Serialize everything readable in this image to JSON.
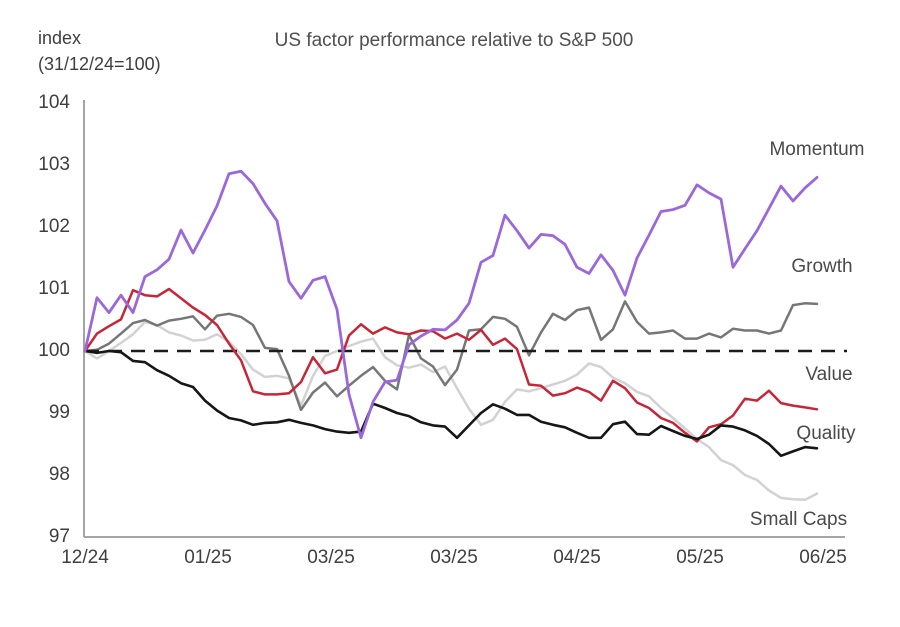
{
  "header": {
    "y_axis_note_line1": "index",
    "y_axis_note_line2": "(31/12/24=100)"
  },
  "chart_data": {
    "type": "line",
    "title": "US factor performance relative to S&P 500",
    "ylabel": "index (31/12/24=100)",
    "ylim": [
      97,
      104
    ],
    "yticks_display": [
      "104",
      "103",
      "102",
      "101",
      "100",
      "99",
      "98",
      "97"
    ],
    "xticks": [
      "12/24",
      "01/25",
      "03/25",
      "03/25",
      "04/25",
      "05/25",
      "06/25"
    ],
    "grid": false,
    "legend_position": "inline-right-labels",
    "baseline": 100,
    "baseline_style": "dashed",
    "baseline_color": "#1c1c1c",
    "axis_color": "#9a9a9a",
    "series": [
      {
        "name": "Small Caps",
        "color": "#d2d2d2",
        "width": 2.5,
        "values": [
          100.0,
          99.88,
          100.0,
          100.13,
          100.27,
          100.47,
          100.42,
          100.3,
          100.25,
          100.17,
          100.18,
          100.27,
          100.15,
          99.95,
          99.7,
          99.58,
          99.6,
          99.56,
          99.12,
          99.6,
          99.92,
          100.0,
          100.08,
          100.15,
          100.2,
          99.9,
          99.77,
          99.73,
          99.78,
          99.66,
          99.75,
          99.4,
          99.07,
          98.81,
          98.89,
          99.18,
          99.38,
          99.35,
          99.4,
          99.46,
          99.52,
          99.62,
          99.8,
          99.74,
          99.57,
          99.48,
          99.34,
          99.27,
          99.08,
          98.92,
          98.75,
          98.58,
          98.45,
          98.24,
          98.16,
          98.0,
          97.92,
          97.75,
          97.63,
          97.61,
          97.6,
          97.7
        ]
      },
      {
        "name": "Growth",
        "color": "#767676",
        "width": 2.5,
        "values": [
          100.0,
          100.02,
          100.12,
          100.28,
          100.45,
          100.5,
          100.41,
          100.49,
          100.52,
          100.56,
          100.35,
          100.57,
          100.6,
          100.55,
          100.42,
          100.05,
          100.03,
          99.6,
          99.05,
          99.33,
          99.49,
          99.27,
          99.44,
          99.6,
          99.74,
          99.52,
          99.38,
          100.26,
          99.88,
          99.75,
          99.45,
          99.7,
          100.33,
          100.35,
          100.55,
          100.52,
          100.39,
          99.93,
          100.3,
          100.6,
          100.5,
          100.66,
          100.7,
          100.18,
          100.35,
          100.8,
          100.47,
          100.28,
          100.3,
          100.33,
          100.2,
          100.2,
          100.28,
          100.22,
          100.36,
          100.33,
          100.33,
          100.28,
          100.33,
          100.74,
          100.77,
          100.76
        ]
      },
      {
        "name": "Value",
        "color": "#c62637",
        "width": 2.5,
        "values": [
          100.0,
          100.28,
          100.4,
          100.51,
          100.98,
          100.9,
          100.88,
          101.0,
          100.85,
          100.7,
          100.58,
          100.42,
          100.12,
          99.85,
          99.35,
          99.3,
          99.3,
          99.32,
          99.5,
          99.9,
          99.64,
          99.7,
          100.25,
          100.43,
          100.28,
          100.38,
          100.3,
          100.27,
          100.33,
          100.32,
          100.2,
          100.28,
          100.18,
          100.34,
          100.1,
          100.2,
          100.03,
          99.46,
          99.44,
          99.28,
          99.32,
          99.41,
          99.34,
          99.2,
          99.52,
          99.4,
          99.17,
          99.08,
          98.92,
          98.84,
          98.68,
          98.54,
          98.77,
          98.82,
          98.96,
          99.23,
          99.2,
          99.36,
          99.16,
          99.12,
          99.09,
          99.06
        ]
      },
      {
        "name": "Quality",
        "color": "#161616",
        "width": 2.6,
        "values": [
          100.0,
          99.97,
          100.0,
          99.98,
          99.84,
          99.82,
          99.69,
          99.6,
          99.48,
          99.42,
          99.2,
          99.04,
          98.92,
          98.88,
          98.81,
          98.84,
          98.85,
          98.89,
          98.84,
          98.8,
          98.74,
          98.7,
          98.68,
          98.7,
          99.15,
          99.08,
          99.0,
          98.95,
          98.85,
          98.8,
          98.78,
          98.6,
          98.8,
          99.0,
          99.14,
          99.07,
          98.97,
          98.97,
          98.86,
          98.81,
          98.77,
          98.68,
          98.6,
          98.6,
          98.82,
          98.86,
          98.66,
          98.65,
          98.79,
          98.71,
          98.63,
          98.58,
          98.65,
          98.8,
          98.78,
          98.72,
          98.63,
          98.5,
          98.31,
          98.38,
          98.45,
          98.43
        ]
      },
      {
        "name": "Momentum",
        "color": "#9b68da",
        "width": 2.8,
        "values": [
          100.0,
          100.86,
          100.62,
          100.9,
          100.62,
          101.2,
          101.31,
          101.48,
          101.95,
          101.58,
          101.95,
          102.34,
          102.86,
          102.9,
          102.7,
          102.38,
          102.1,
          101.12,
          100.85,
          101.14,
          101.2,
          100.67,
          99.3,
          98.6,
          99.18,
          99.5,
          99.53,
          100.1,
          100.24,
          100.35,
          100.34,
          100.5,
          100.77,
          101.43,
          101.54,
          102.19,
          101.94,
          101.66,
          101.88,
          101.86,
          101.72,
          101.35,
          101.25,
          101.55,
          101.3,
          100.9,
          101.5,
          101.87,
          102.25,
          102.28,
          102.35,
          102.68,
          102.55,
          102.45,
          101.35,
          101.65,
          101.94,
          102.3,
          102.66,
          102.42,
          102.63,
          102.8
        ]
      }
    ]
  }
}
